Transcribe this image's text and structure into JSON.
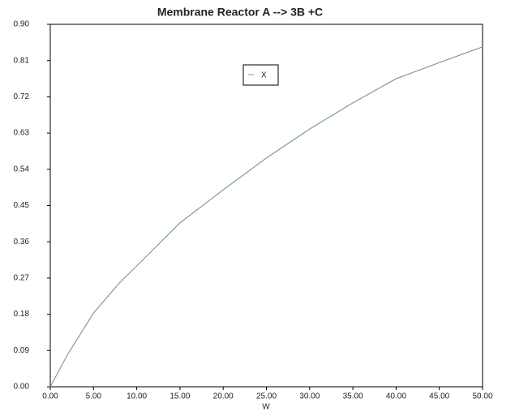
{
  "chart_data": {
    "type": "line",
    "title": "Membrane Reactor   A --> 3B +C",
    "x_label": "W",
    "x": [
      0,
      2,
      5,
      8,
      10,
      15,
      20,
      25,
      30,
      35,
      40,
      45,
      50
    ],
    "series": [
      {
        "name": "X",
        "color": "#7f9c9c",
        "values": [
          0,
          0.08,
          0.183,
          0.258,
          0.3,
          0.407,
          0.489,
          0.568,
          0.64,
          0.705,
          0.765,
          0.805,
          0.844
        ]
      }
    ],
    "xlim": [
      0,
      50
    ],
    "xticks": [
      {
        "value": 0,
        "label": "0.00"
      },
      {
        "value": 5,
        "label": "5.00"
      },
      {
        "value": 10,
        "label": "10.00"
      },
      {
        "value": 15,
        "label": "15.00"
      },
      {
        "value": 20,
        "label": "20.00"
      },
      {
        "value": 25,
        "label": "25.00"
      },
      {
        "value": 30,
        "label": "30.00"
      },
      {
        "value": 35,
        "label": "35.00"
      },
      {
        "value": 40,
        "label": "40.00"
      },
      {
        "value": 45,
        "label": "45.00"
      },
      {
        "value": 50,
        "label": "50.00"
      }
    ],
    "ylim": [
      0,
      0.9
    ],
    "yticks": [
      {
        "value": 0,
        "label": "0.00"
      },
      {
        "value": 0.09,
        "label": "0.09"
      },
      {
        "value": 0.18,
        "label": "0.18"
      },
      {
        "value": 0.27,
        "label": "0.27"
      },
      {
        "value": 0.36,
        "label": "0.36"
      },
      {
        "value": 0.45,
        "label": "0.45"
      },
      {
        "value": 0.54,
        "label": "0.54"
      },
      {
        "value": 0.63,
        "label": "0.63"
      },
      {
        "value": 0.72,
        "label": "0.72"
      },
      {
        "value": 0.81,
        "label": "0.81"
      },
      {
        "value": 0.9,
        "label": "0.90"
      }
    ]
  }
}
